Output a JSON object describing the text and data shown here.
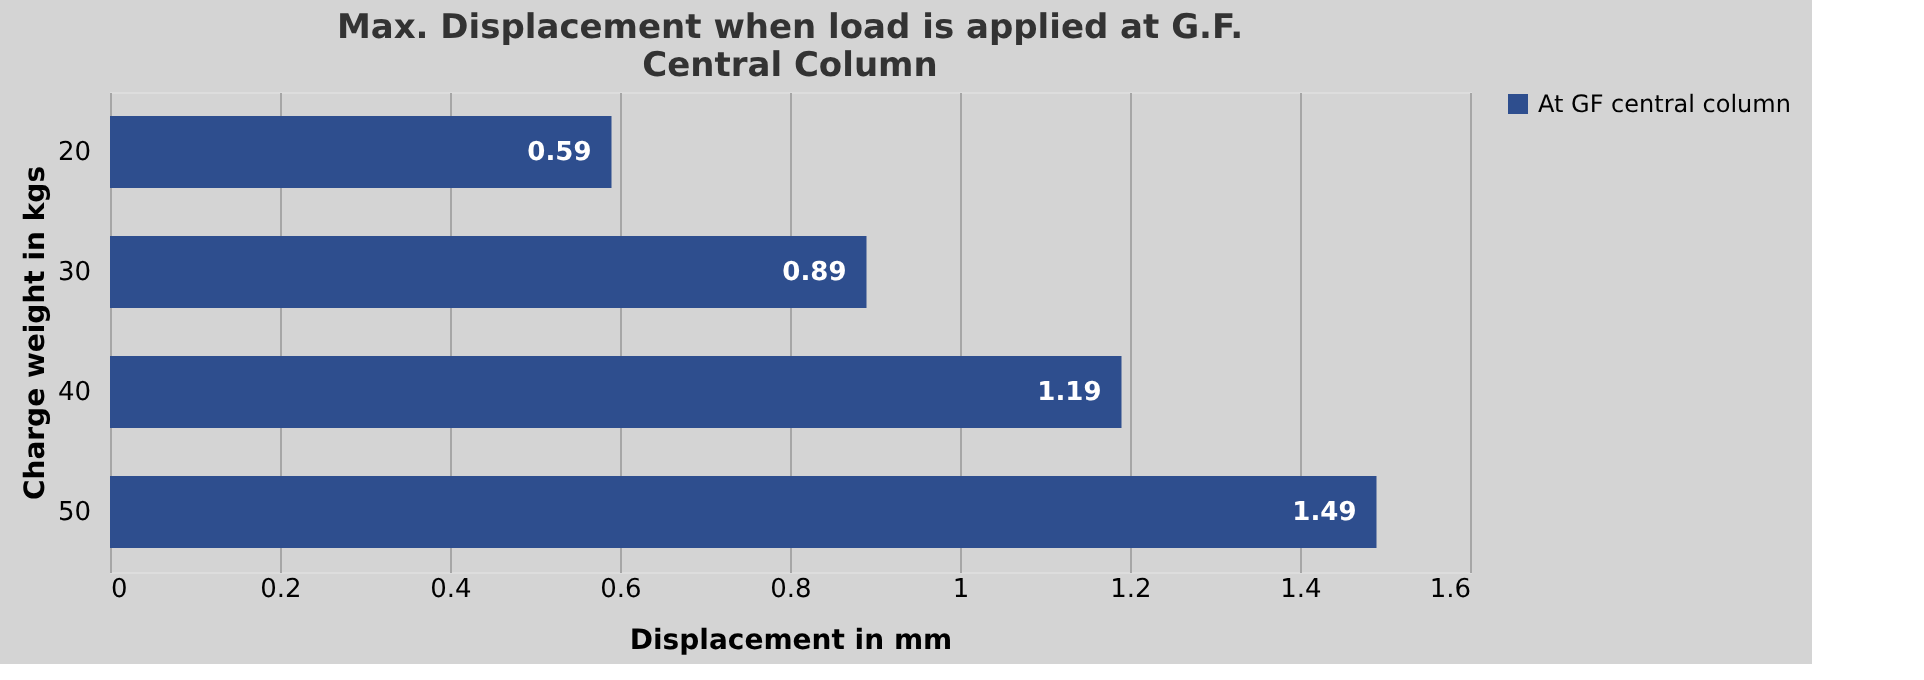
{
  "chart_data": {
    "type": "bar",
    "orientation": "horizontal",
    "title": "Max. Displacement when load is applied at G.F. Central Column",
    "xlabel": "Displacement in mm",
    "ylabel": "Charge weight in kgs",
    "categories": [
      "20",
      "30",
      "40",
      "50"
    ],
    "series": [
      {
        "name": "At GF central column",
        "color": "#2e4e8e",
        "values": [
          0.59,
          0.89,
          1.19,
          1.49
        ]
      }
    ],
    "xlim": [
      0,
      1.6
    ],
    "xticks": [
      0,
      0.2,
      0.4,
      0.6,
      0.8,
      1,
      1.2,
      1.4,
      1.6
    ],
    "grid": "x",
    "legend": "right",
    "data_labels": true
  }
}
